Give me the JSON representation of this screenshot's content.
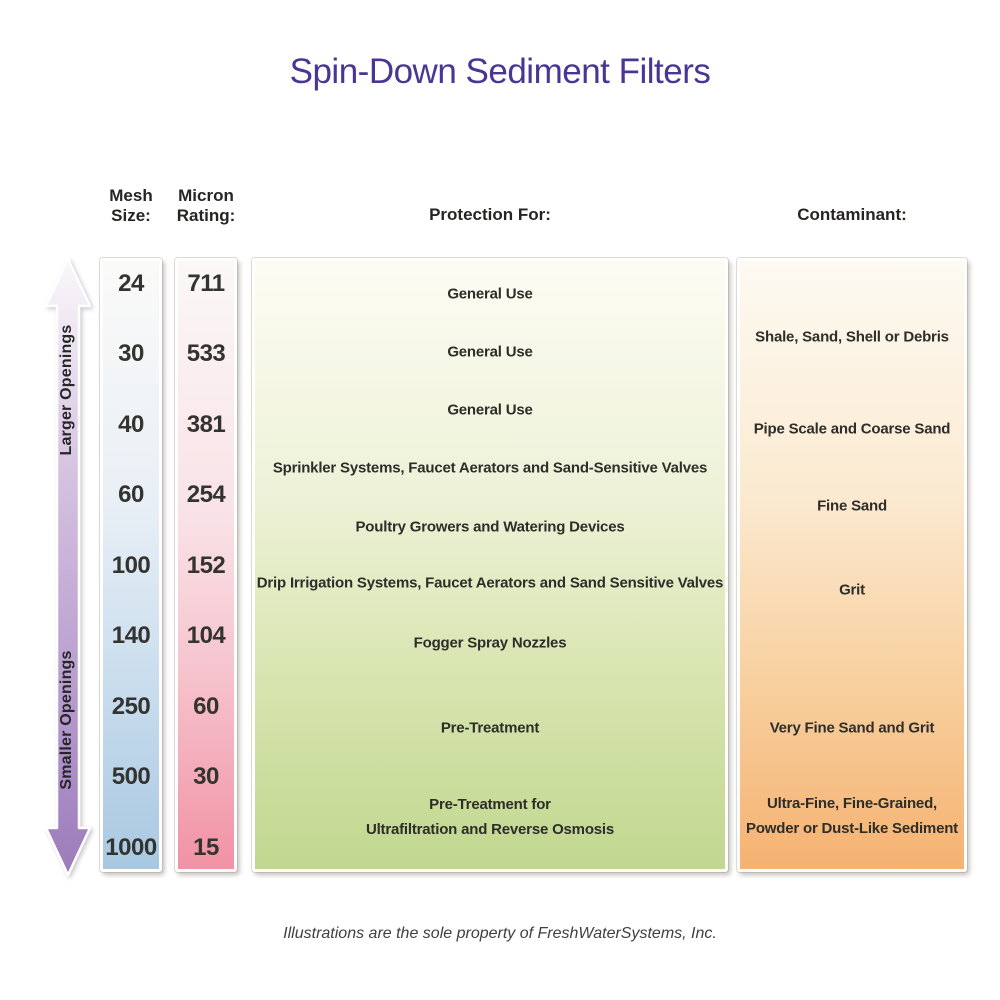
{
  "title": "Spin-Down Sediment Filters",
  "arrow": {
    "top_label": "Larger Openings",
    "bottom_label": "Smaller Openings"
  },
  "columns": {
    "mesh": {
      "header": "Mesh\nSize:",
      "values": [
        "24",
        "30",
        "40",
        "60",
        "100",
        "140",
        "250",
        "500",
        "1000"
      ]
    },
    "micron": {
      "header": "Micron\nRating:",
      "values": [
        "711",
        "533",
        "381",
        "254",
        "152",
        "104",
        "60",
        "30",
        "15"
      ]
    },
    "protection": {
      "header": "Protection For:",
      "items": [
        "General Use",
        "General Use",
        "General Use",
        "Sprinkler Systems,  Faucet Aerators  and  Sand-Sensitive Valves",
        "Poultry Growers  and  Watering Devices",
        "Drip Irrigation Systems, Faucet Aerators and Sand Sensitive Valves",
        "Fogger Spray Nozzles",
        "Pre-Treatment",
        "Pre-Treatment for\nUltrafiltration  and  Reverse Osmosis"
      ]
    },
    "contaminant": {
      "header": "Contaminant:",
      "items": [
        "Shale, Sand, Shell or Debris",
        "Pipe Scale and Coarse Sand",
        "Fine Sand",
        "Grit",
        "Very Fine Sand and Grit",
        "Ultra-Fine, Fine-Grained,\nPowder or Dust-Like Sediment"
      ]
    }
  },
  "footer": "Illustrations are the sole property of FreshWaterSystems, Inc.",
  "colors": {
    "title_purple": "#4b3594",
    "mesh_bottom_blue": "#a8c8e2",
    "micron_bottom_pink": "#f192a5",
    "protection_bottom_green": "#c1d78f",
    "contaminant_bottom_orange": "#f5b271",
    "arrow_purple": "#9c7bba",
    "text_dark": "#2d2d2a"
  },
  "chart_data": {
    "type": "table",
    "title": "Spin-Down Sediment Filters",
    "columns": [
      "Mesh Size",
      "Micron Rating",
      "Protection For",
      "Contaminant"
    ],
    "mesh_sizes": [
      24,
      30,
      40,
      60,
      100,
      140,
      250,
      500,
      1000
    ],
    "micron_ratings": [
      711,
      533,
      381,
      254,
      152,
      104,
      60,
      30,
      15
    ],
    "protection_for": [
      "General Use",
      "General Use",
      "General Use",
      "Sprinkler Systems, Faucet Aerators and Sand-Sensitive Valves",
      "Poultry Growers and Watering Devices",
      "Drip Irrigation Systems, Faucet Aerators and Sand Sensitive Valves",
      "Fogger Spray Nozzles",
      "Pre-Treatment",
      "Pre-Treatment for Ultrafiltration and Reverse Osmosis"
    ],
    "contaminants": [
      "Shale, Sand, Shell or Debris",
      "Pipe Scale and Coarse Sand",
      "Fine Sand",
      "Grit",
      "Very Fine Sand and Grit",
      "Ultra-Fine, Fine-Grained, Powder or Dust-Like Sediment"
    ],
    "orientation": "larger openings at top, smaller openings at bottom"
  }
}
